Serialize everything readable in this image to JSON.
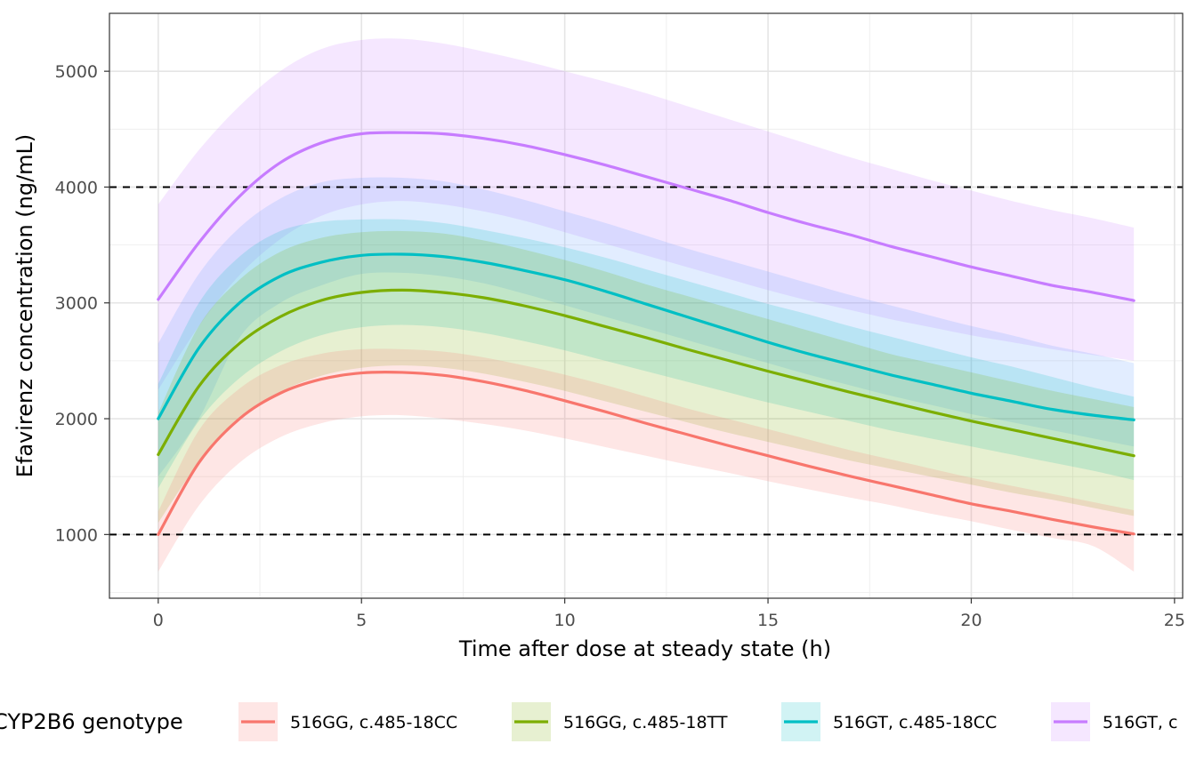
{
  "chart_data": {
    "type": "line",
    "title": "",
    "xlabel": "Time after dose at steady state (h)",
    "ylabel": "Efavirenz concentration (ng/mL)",
    "xlim": [
      -1.2,
      25.2
    ],
    "ylim": [
      450,
      5500
    ],
    "x_ticks": [
      0,
      5,
      10,
      15,
      20,
      25
    ],
    "y_ticks": [
      1000,
      2000,
      3000,
      4000,
      5000
    ],
    "grid": true,
    "reference_lines": [
      1000,
      4000
    ],
    "reference_line_style": "dashed",
    "legend": {
      "title": "CYP2B6 genotype",
      "position": "bottom"
    },
    "x": [
      0,
      1,
      2,
      3,
      4,
      5,
      6,
      7,
      8,
      9,
      10,
      11,
      12,
      13,
      14,
      15,
      16,
      17,
      18,
      19,
      20,
      21,
      22,
      23,
      24
    ],
    "series": [
      {
        "name": "516GG, c.485-18CC",
        "color": "#F8766D",
        "values": [
          1000,
          1620,
          2000,
          2220,
          2340,
          2395,
          2400,
          2375,
          2320,
          2245,
          2155,
          2060,
          1960,
          1865,
          1770,
          1680,
          1590,
          1505,
          1425,
          1345,
          1265,
          1200,
          1130,
          1065,
          1005
        ],
        "lower": [
          680,
          1250,
          1620,
          1840,
          1960,
          2020,
          2030,
          2000,
          1955,
          1900,
          1830,
          1755,
          1680,
          1605,
          1535,
          1460,
          1390,
          1320,
          1255,
          1180,
          1115,
          1040,
          970,
          900,
          680
        ],
        "upper": [
          1200,
          1900,
          2260,
          2460,
          2560,
          2600,
          2600,
          2580,
          2530,
          2460,
          2380,
          2290,
          2190,
          2090,
          2000,
          1910,
          1820,
          1730,
          1650,
          1570,
          1490,
          1420,
          1350,
          1280,
          1210
        ]
      },
      {
        "name": "516GG, c.485-18TT",
        "color": "#7CAE00",
        "values": [
          1690,
          2280,
          2650,
          2880,
          3020,
          3090,
          3110,
          3090,
          3045,
          2975,
          2890,
          2795,
          2700,
          2600,
          2505,
          2410,
          2320,
          2230,
          2145,
          2060,
          1980,
          1905,
          1830,
          1755,
          1680
        ],
        "lower": [
          1100,
          1620,
          1990,
          2230,
          2370,
          2440,
          2460,
          2440,
          2390,
          2320,
          2240,
          2150,
          2060,
          1970,
          1880,
          1800,
          1720,
          1640,
          1570,
          1500,
          1430,
          1360,
          1300,
          1230,
          1160
        ],
        "upper": [
          2050,
          2800,
          3200,
          3440,
          3560,
          3610,
          3620,
          3600,
          3540,
          3460,
          3370,
          3270,
          3160,
          3060,
          2960,
          2860,
          2760,
          2660,
          2560,
          2480,
          2400,
          2320,
          2240,
          2170,
          2100
        ]
      },
      {
        "name": "516GT, c.485-18CC",
        "color": "#00BFC4",
        "values": [
          2000,
          2610,
          3000,
          3230,
          3350,
          3410,
          3420,
          3400,
          3350,
          3280,
          3200,
          3100,
          2990,
          2880,
          2770,
          2660,
          2560,
          2470,
          2380,
          2300,
          2220,
          2150,
          2080,
          2030,
          1990
        ],
        "lower": [
          1400,
          1980,
          2350,
          2580,
          2720,
          2790,
          2810,
          2790,
          2740,
          2670,
          2590,
          2500,
          2410,
          2320,
          2230,
          2140,
          2060,
          1980,
          1900,
          1830,
          1760,
          1690,
          1620,
          1550,
          1470
        ],
        "upper": [
          2300,
          3000,
          3400,
          3620,
          3700,
          3720,
          3720,
          3690,
          3630,
          3560,
          3480,
          3390,
          3290,
          3190,
          3090,
          2990,
          2900,
          2800,
          2710,
          2620,
          2530,
          2450,
          2360,
          2270,
          2190
        ]
      },
      {
        "name": "516GT, c",
        "color": "#C77CFF",
        "values": [
          3030,
          3520,
          3920,
          4210,
          4380,
          4460,
          4470,
          4460,
          4420,
          4360,
          4280,
          4190,
          4090,
          3990,
          3890,
          3780,
          3680,
          3590,
          3490,
          3400,
          3310,
          3230,
          3150,
          3090,
          3020
        ],
        "lower": [
          2250,
          2800,
          3240,
          3550,
          3750,
          3850,
          3880,
          3850,
          3790,
          3710,
          3610,
          3510,
          3410,
          3310,
          3210,
          3110,
          3020,
          2940,
          2860,
          2790,
          2720,
          2660,
          2600,
          2550,
          2500
        ],
        "upper": [
          3850,
          4320,
          4700,
          5000,
          5190,
          5270,
          5280,
          5240,
          5170,
          5090,
          5000,
          4910,
          4810,
          4700,
          4590,
          4480,
          4370,
          4260,
          4160,
          4060,
          3970,
          3880,
          3800,
          3730,
          3650
        ]
      }
    ],
    "extra_bands": [
      {
        "name": "blue",
        "color": "#619CFF",
        "lower": [
          1500,
          2000,
          2700,
          3000,
          3150,
          3250,
          3260,
          3230,
          3170,
          3080,
          2980,
          2880,
          2780,
          2680,
          2580,
          2480,
          2380,
          2290,
          2200,
          2120,
          2040,
          1970,
          1900,
          1830,
          1760
        ],
        "upper": [
          2650,
          3250,
          3650,
          3900,
          4040,
          4080,
          4080,
          4050,
          3980,
          3890,
          3790,
          3690,
          3580,
          3470,
          3370,
          3270,
          3170,
          3070,
          2980,
          2890,
          2800,
          2720,
          2630,
          2560,
          2480
        ]
      }
    ]
  }
}
